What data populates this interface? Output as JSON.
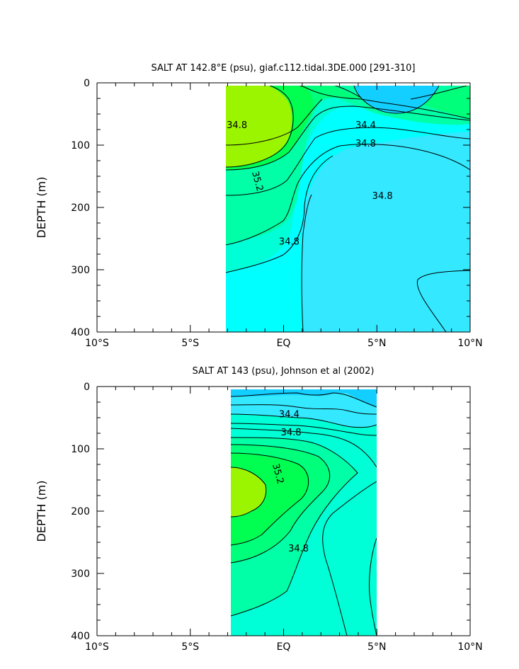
{
  "chart_data": [
    {
      "type": "contour",
      "title": "SALT AT 142.8°E (psu), giaf.c112.tidal.3DE.000 [291-310]",
      "xlabel": "",
      "ylabel": "DEPTH (m)",
      "xlim": [
        -10,
        10
      ],
      "ylim": [
        400,
        0
      ],
      "x_ticks": [
        {
          "value": -10,
          "label": "10°S"
        },
        {
          "value": -5,
          "label": "5°S"
        },
        {
          "value": 0,
          "label": "EQ"
        },
        {
          "value": 5,
          "label": "5°N"
        },
        {
          "value": 10,
          "label": "10°N"
        }
      ],
      "y_ticks": [
        {
          "value": 0,
          "label": "0"
        },
        {
          "value": 100,
          "label": "100"
        },
        {
          "value": 200,
          "label": "200"
        },
        {
          "value": 300,
          "label": "300"
        },
        {
          "value": 400,
          "label": "400"
        }
      ],
      "data_extent": {
        "lon": [
          -3,
          10
        ],
        "depth": [
          5,
          400
        ]
      },
      "contour_labels": [
        {
          "text": "34.8",
          "lon": -2.5,
          "depth": 68
        },
        {
          "text": "34.4",
          "lon": 4.4,
          "depth": 68
        },
        {
          "text": "34.8",
          "lon": 4.4,
          "depth": 98
        },
        {
          "text": "35.2",
          "lon": -1.4,
          "depth": 158
        },
        {
          "text": "34.8",
          "lon": 5.3,
          "depth": 182
        },
        {
          "text": "34.8",
          "lon": 0.3,
          "depth": 255
        }
      ]
    },
    {
      "type": "contour",
      "title": "SALT AT 143 (psu), Johnson et al (2002)",
      "xlabel": "",
      "ylabel": "DEPTH (m)",
      "xlim": [
        -10,
        10
      ],
      "ylim": [
        400,
        0
      ],
      "x_ticks": [
        {
          "value": -10,
          "label": "10°S"
        },
        {
          "value": -5,
          "label": "5°S"
        },
        {
          "value": 0,
          "label": "EQ"
        },
        {
          "value": 5,
          "label": "5°N"
        },
        {
          "value": 10,
          "label": "10°N"
        }
      ],
      "y_ticks": [
        {
          "value": 0,
          "label": "0"
        },
        {
          "value": 100,
          "label": "100"
        },
        {
          "value": 200,
          "label": "200"
        },
        {
          "value": 300,
          "label": "300"
        },
        {
          "value": 400,
          "label": "400"
        }
      ],
      "data_extent": {
        "lon": [
          -2.75,
          5
        ],
        "depth": [
          5,
          400
        ]
      },
      "contour_labels": [
        {
          "text": "34.4",
          "lon": 0.3,
          "depth": 45
        },
        {
          "text": "34.8",
          "lon": 0.4,
          "depth": 74
        },
        {
          "text": "35.2",
          "lon": -0.3,
          "depth": 140
        },
        {
          "text": "34.8",
          "lon": 0.8,
          "depth": 260
        }
      ]
    }
  ]
}
